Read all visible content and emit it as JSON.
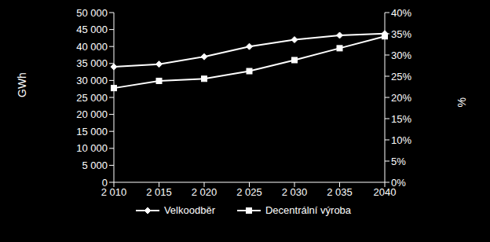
{
  "chart_data": {
    "type": "line",
    "categories": [
      "2 010",
      "2 015",
      "2 020",
      "2 025",
      "2 030",
      "2 035",
      "2040"
    ],
    "y_label": "GWh",
    "y2_label": "%",
    "ylim": [
      0,
      50000
    ],
    "yticks": [
      {
        "value": 0,
        "label": "0"
      },
      {
        "value": 5000,
        "label": "5 000"
      },
      {
        "value": 10000,
        "label": "10 000"
      },
      {
        "value": 15000,
        "label": "15 000"
      },
      {
        "value": 20000,
        "label": "20 000"
      },
      {
        "value": 25000,
        "label": "25 000"
      },
      {
        "value": 30000,
        "label": "30 000"
      },
      {
        "value": 35000,
        "label": "35 000"
      },
      {
        "value": 40000,
        "label": "40 000"
      },
      {
        "value": 45000,
        "label": "45 000"
      },
      {
        "value": 50000,
        "label": "50 000"
      }
    ],
    "y2lim": [
      0,
      40
    ],
    "y2ticks": [
      {
        "value": 0,
        "label": "0%"
      },
      {
        "value": 5,
        "label": "5%"
      },
      {
        "value": 10,
        "label": "10%"
      },
      {
        "value": 15,
        "label": "15%"
      },
      {
        "value": 20,
        "label": "20%"
      },
      {
        "value": 25,
        "label": "25%"
      },
      {
        "value": 30,
        "label": "30%"
      },
      {
        "value": 35,
        "label": "35%"
      },
      {
        "value": 40,
        "label": "40%"
      }
    ],
    "legend": "bottom",
    "grid": false,
    "series": [
      {
        "name": "Velkoodběr",
        "color": "#ffffff",
        "marker": "diamond",
        "values": [
          34000,
          34800,
          37000,
          40000,
          42000,
          43300,
          43800
        ]
      },
      {
        "name": "Decentrální výroba",
        "color": "#ffffff",
        "marker": "square",
        "axis": "y2",
        "values": [
          22.2,
          23.9,
          24.4,
          26.2,
          28.8,
          31.6,
          34.4
        ]
      }
    ]
  }
}
